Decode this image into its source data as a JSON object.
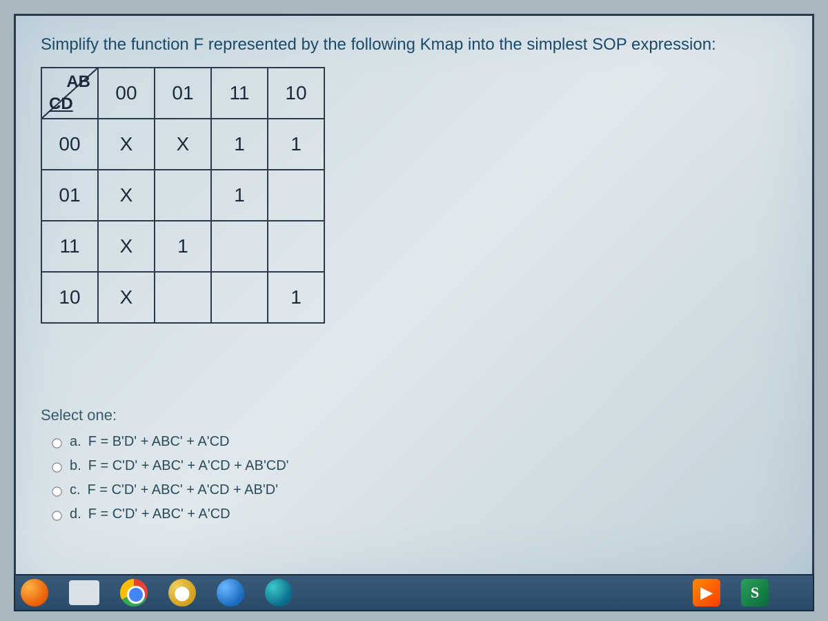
{
  "question": "Simplify the function F represented by the following Kmap into the simplest SOP expression:",
  "kmap": {
    "col_var": "AB",
    "row_var": "CD",
    "col_headers": [
      "00",
      "01",
      "11",
      "10"
    ],
    "row_headers": [
      "00",
      "01",
      "11",
      "10"
    ],
    "cells": [
      [
        "X",
        "X",
        "1",
        "1"
      ],
      [
        "X",
        "",
        "1",
        ""
      ],
      [
        "X",
        "1",
        "",
        ""
      ],
      [
        "X",
        "",
        "",
        "1"
      ]
    ],
    "border_color": "#2a3a4a",
    "text_color": "#1a2a3a",
    "cell_fontsize": 28
  },
  "select_label": "Select one:",
  "options": [
    {
      "letter": "a.",
      "text": "F = B'D' + ABC' + A'CD"
    },
    {
      "letter": "b.",
      "text": "F = C'D' + ABC' + A'CD + AB'CD'"
    },
    {
      "letter": "c.",
      "text": "F = C'D' + ABC' + A'CD + AB'D'"
    },
    {
      "letter": "d.",
      "text": "F = C'D' + ABC' + A'CD"
    }
  ],
  "taskbar": {
    "play_glyph": "▶",
    "s_glyph": "S",
    "shield_glyph": "⬤"
  }
}
